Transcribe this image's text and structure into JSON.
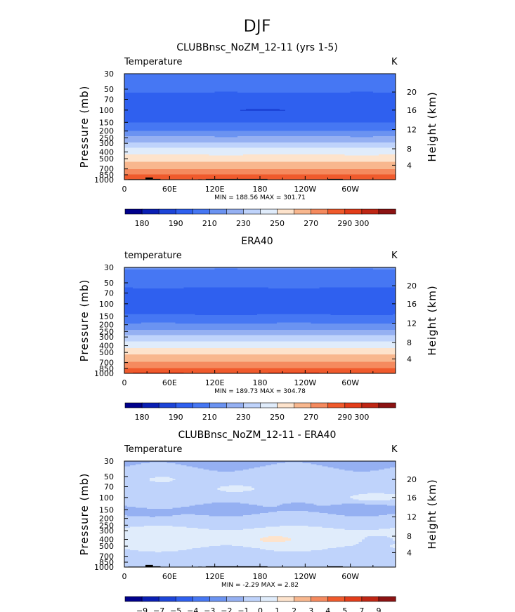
{
  "main_title": "DJF",
  "chart_data": [
    {
      "type": "heatmap",
      "title": "CLUBBnsc_NoZM_12-11 (yrs 1-5)",
      "variable": "Temperature",
      "units": "K",
      "ylabel": "Pressure (mb)",
      "ylabel_right": "Height (km)",
      "x_ticks": [
        "0",
        "60E",
        "120E",
        "180",
        "120W",
        "60W"
      ],
      "x_lim": [
        0,
        360
      ],
      "y_ticks": [
        "30",
        "50",
        "70",
        "100",
        "150",
        "200",
        "250",
        "300",
        "400",
        "500",
        "700",
        "850",
        "1000"
      ],
      "y_lim": [
        30,
        1000
      ],
      "y_scale": "log",
      "height_ticks": [
        "20",
        "16",
        "12",
        "8",
        "4"
      ],
      "min_max": "MIN = 188.56  MAX = 301.71",
      "colorbar_labels": [
        "180",
        "190",
        "210",
        "230",
        "250",
        "270",
        "290",
        "300"
      ],
      "levels": [
        180,
        185,
        190,
        200,
        210,
        220,
        230,
        240,
        250,
        260,
        270,
        280,
        290,
        295,
        300
      ],
      "profile": [
        {
          "p": 30,
          "t": 210
        },
        {
          "p": 50,
          "t": 202
        },
        {
          "p": 70,
          "t": 196
        },
        {
          "p": 100,
          "t": 192
        },
        {
          "p": 150,
          "t": 200
        },
        {
          "p": 200,
          "t": 210
        },
        {
          "p": 250,
          "t": 222
        },
        {
          "p": 300,
          "t": 232
        },
        {
          "p": 400,
          "t": 246
        },
        {
          "p": 500,
          "t": 256
        },
        {
          "p": 700,
          "t": 270
        },
        {
          "p": 850,
          "t": 280
        },
        {
          "p": 1000,
          "t": 290
        }
      ],
      "blobs": [
        {
          "lon": 185,
          "p": 100,
          "dlon": 30,
          "dlogp": 0.02,
          "amp": -6
        }
      ],
      "terrain": true
    },
    {
      "type": "heatmap",
      "title": "ERA40",
      "variable": "temperature",
      "units": "K",
      "ylabel": "Pressure (mb)",
      "ylabel_right": "Height (km)",
      "x_ticks": [
        "0",
        "60E",
        "120E",
        "180",
        "120W",
        "60W"
      ],
      "x_lim": [
        0,
        360
      ],
      "y_ticks": [
        "30",
        "50",
        "70",
        "100",
        "150",
        "200",
        "250",
        "300",
        "400",
        "500",
        "700",
        "850",
        "1000"
      ],
      "y_lim": [
        30,
        1000
      ],
      "y_scale": "log",
      "height_ticks": [
        "20",
        "16",
        "12",
        "8",
        "4"
      ],
      "min_max": "MIN = 189.73  MAX = 304.78",
      "colorbar_labels": [
        "180",
        "190",
        "210",
        "230",
        "250",
        "270",
        "290",
        "300"
      ],
      "levels": [
        180,
        185,
        190,
        200,
        210,
        220,
        230,
        240,
        250,
        260,
        270,
        280,
        290,
        295,
        300
      ],
      "profile": [
        {
          "p": 30,
          "t": 211
        },
        {
          "p": 50,
          "t": 203
        },
        {
          "p": 70,
          "t": 197
        },
        {
          "p": 100,
          "t": 193
        },
        {
          "p": 150,
          "t": 201
        },
        {
          "p": 200,
          "t": 212
        },
        {
          "p": 250,
          "t": 223
        },
        {
          "p": 300,
          "t": 233
        },
        {
          "p": 400,
          "t": 247
        },
        {
          "p": 500,
          "t": 257
        },
        {
          "p": 700,
          "t": 271
        },
        {
          "p": 850,
          "t": 281
        },
        {
          "p": 1000,
          "t": 291
        }
      ],
      "blobs": [],
      "terrain": false
    },
    {
      "type": "heatmap",
      "title": "CLUBBnsc_NoZM_12-11 - ERA40",
      "variable": "Temperature",
      "units": "K",
      "ylabel": "Pressure (mb)",
      "ylabel_right": "Height (km)",
      "x_ticks": [
        "0",
        "60E",
        "120E",
        "180",
        "120W",
        "60W"
      ],
      "x_lim": [
        0,
        360
      ],
      "y_ticks": [
        "30",
        "50",
        "70",
        "100",
        "150",
        "200",
        "250",
        "300",
        "400",
        "500",
        "700",
        "850",
        "1000"
      ],
      "y_lim": [
        30,
        1000
      ],
      "y_scale": "log",
      "height_ticks": [
        "20",
        "16",
        "12",
        "8",
        "4"
      ],
      "min_max": "MIN =   -2.29  MAX =    2.82",
      "colorbar_labels": [
        "−9",
        "−7",
        "−5",
        "−4",
        "−3",
        "−2",
        "−1",
        "0",
        "1",
        "2",
        "3",
        "4",
        "5",
        "7",
        "9"
      ],
      "levels": [
        -9,
        -7,
        -5,
        -4,
        -3,
        -2,
        -1,
        0,
        1,
        2,
        3,
        4,
        5,
        7,
        9
      ],
      "profile": [
        {
          "p": 30,
          "t": -1.3
        },
        {
          "p": 50,
          "t": -0.5
        },
        {
          "p": 70,
          "t": -0.3
        },
        {
          "p": 100,
          "t": -0.4
        },
        {
          "p": 150,
          "t": -1.3
        },
        {
          "p": 200,
          "t": -0.6
        },
        {
          "p": 250,
          "t": -0.3
        },
        {
          "p": 300,
          "t": 0.3
        },
        {
          "p": 400,
          "t": 0.5
        },
        {
          "p": 500,
          "t": 0.2
        },
        {
          "p": 700,
          "t": -0.6
        },
        {
          "p": 850,
          "t": -0.4
        },
        {
          "p": 1000,
          "t": -0.8
        }
      ],
      "blobs": [
        {
          "lon": 50,
          "p": 55,
          "dlon": 15,
          "dlogp": 0.03,
          "amp": 0.9
        },
        {
          "lon": 145,
          "p": 75,
          "dlon": 30,
          "dlogp": 0.06,
          "amp": 0.9
        },
        {
          "lon": 330,
          "p": 100,
          "dlon": 30,
          "dlogp": 0.06,
          "amp": 1.6
        },
        {
          "lon": 230,
          "p": 130,
          "dlon": 20,
          "dlogp": 0.05,
          "amp": -0.9
        },
        {
          "lon": 40,
          "p": 180,
          "dlon": 35,
          "dlogp": 0.05,
          "amp": -0.6
        },
        {
          "lon": 195,
          "p": 400,
          "dlon": 25,
          "dlogp": 0.05,
          "amp": 0.8
        },
        {
          "lon": 340,
          "p": 420,
          "dlon": 20,
          "dlogp": 0.06,
          "amp": -1.0
        },
        {
          "lon": 230,
          "p": 700,
          "dlon": 25,
          "dlogp": 0.04,
          "amp": -0.6
        }
      ],
      "terrain": true
    }
  ],
  "palette": [
    "#00008b",
    "#0a1fb4",
    "#1d45d8",
    "#2f60ef",
    "#4677f3",
    "#6b93f1",
    "#95b0f2",
    "#bfd3fb",
    "#e0ecfb",
    "#fde3cc",
    "#f8b78e",
    "#f58a5e",
    "#f05a2c",
    "#e33d1a",
    "#bf2614",
    "#8c1313"
  ]
}
